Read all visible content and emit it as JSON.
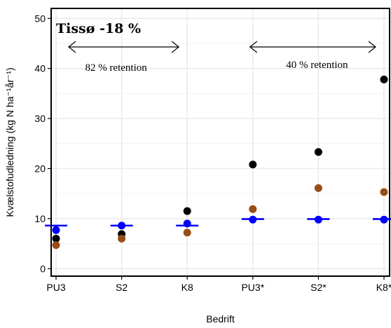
{
  "chart_data": {
    "type": "scatter",
    "categories": [
      "PU3",
      "S2",
      "K8",
      "PU3*",
      "S2*",
      "K8*"
    ],
    "xlabel": "Bedrift",
    "ylabel": "Kvælstofudledning (kg N ha⁻¹år⁻¹)",
    "ylim": [
      -1.5,
      52
    ],
    "yticks": [
      0,
      10,
      20,
      30,
      40,
      50
    ],
    "grid": true,
    "series": [
      {
        "color": "#000000",
        "marker": "dot",
        "values": [
          6.0,
          6.9,
          11.5,
          20.8,
          23.3,
          37.8
        ]
      },
      {
        "color": "#994d17",
        "marker": "dot",
        "values": [
          4.7,
          6.0,
          7.2,
          11.9,
          16.1,
          15.3
        ]
      },
      {
        "color": "#0000ff",
        "marker": "dot",
        "values": [
          7.7,
          8.6,
          9.0,
          9.8,
          9.8,
          9.8
        ]
      },
      {
        "color": "#0000ff",
        "marker": "hline",
        "values": [
          8.6,
          8.6,
          8.6,
          9.9,
          9.9,
          9.9
        ]
      }
    ],
    "annotations": {
      "title": "Tissø -18 %",
      "left_retention": "82 % retention",
      "right_retention": "40 % retention"
    }
  }
}
